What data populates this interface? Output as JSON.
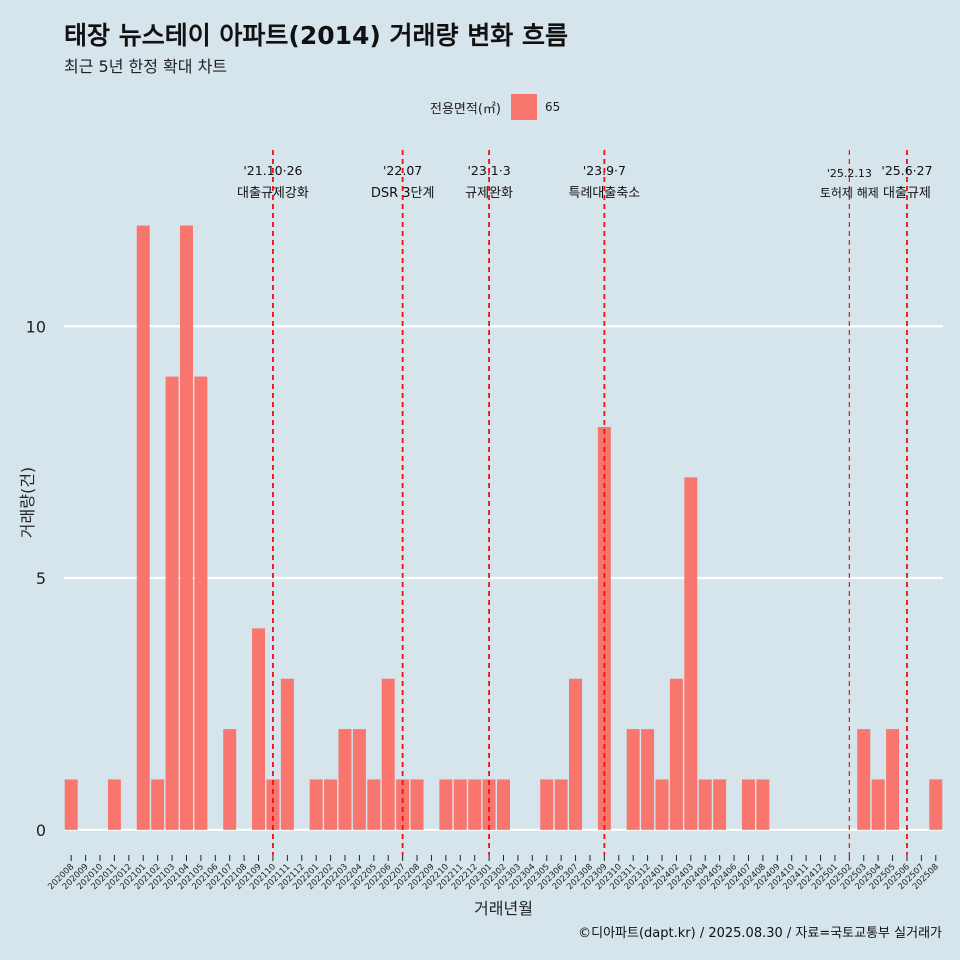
{
  "title": "태장 뉴스테이 아파트(2014) 거래량 변화 흐름",
  "subtitle": "최근 5년 한정 확대 차트",
  "caption": "©디아파트(dapt.kr) / 2025.08.30 / 자료=국토교통부 실거래가",
  "legend": {
    "title": "전용면적(㎡)",
    "label": "65"
  },
  "chart_data": {
    "type": "bar",
    "xlabel": "거래년월",
    "ylabel": "거래량(건)",
    "ylim": [
      -0.5,
      13.5
    ],
    "yticks": [
      0,
      5,
      10
    ],
    "grid": "horizontal major lines",
    "bar_color": "#f8766d",
    "categories": [
      "202008",
      "202009",
      "202010",
      "202011",
      "202012",
      "202101",
      "202102",
      "202103",
      "202104",
      "202105",
      "202106",
      "202107",
      "202108",
      "202109",
      "202110",
      "202111",
      "202112",
      "202201",
      "202202",
      "202203",
      "202204",
      "202205",
      "202206",
      "202207",
      "202208",
      "202209",
      "202210",
      "202211",
      "202212",
      "202301",
      "202302",
      "202303",
      "202304",
      "202305",
      "202306",
      "202307",
      "202308",
      "202309",
      "202310",
      "202311",
      "202312",
      "202401",
      "202402",
      "202403",
      "202404",
      "202405",
      "202406",
      "202407",
      "202408",
      "202409",
      "202410",
      "202411",
      "202412",
      "202501",
      "202502",
      "202503",
      "202504",
      "202505",
      "202506",
      "202507",
      "202508"
    ],
    "series": [
      {
        "name": "65",
        "values": [
          1,
          0,
          0,
          1,
          0,
          12,
          1,
          9,
          12,
          9,
          0,
          2,
          0,
          4,
          1,
          3,
          0,
          1,
          1,
          2,
          2,
          1,
          3,
          1,
          1,
          0,
          1,
          1,
          1,
          1,
          1,
          0,
          0,
          1,
          1,
          3,
          0,
          8,
          0,
          2,
          2,
          1,
          3,
          7,
          1,
          1,
          0,
          1,
          1,
          0,
          0,
          0,
          0,
          0,
          0,
          2,
          1,
          2,
          0,
          0,
          1
        ]
      }
    ],
    "annotations": [
      {
        "at": "202110",
        "date": "'21.10·26",
        "text": "대출규제강화"
      },
      {
        "at": "202207",
        "date": "'22.07",
        "text": "DSR 3단계"
      },
      {
        "at": "202301",
        "date": "'23.1·3",
        "text": "규제완화"
      },
      {
        "at": "202309",
        "date": "'23.9·7",
        "text": "특례대출축소"
      },
      {
        "at": "202502",
        "date": "'25.2.13",
        "text": "토허제 해제"
      },
      {
        "at": "202506",
        "date": "'25.6·27",
        "text": "대출규제"
      }
    ]
  }
}
